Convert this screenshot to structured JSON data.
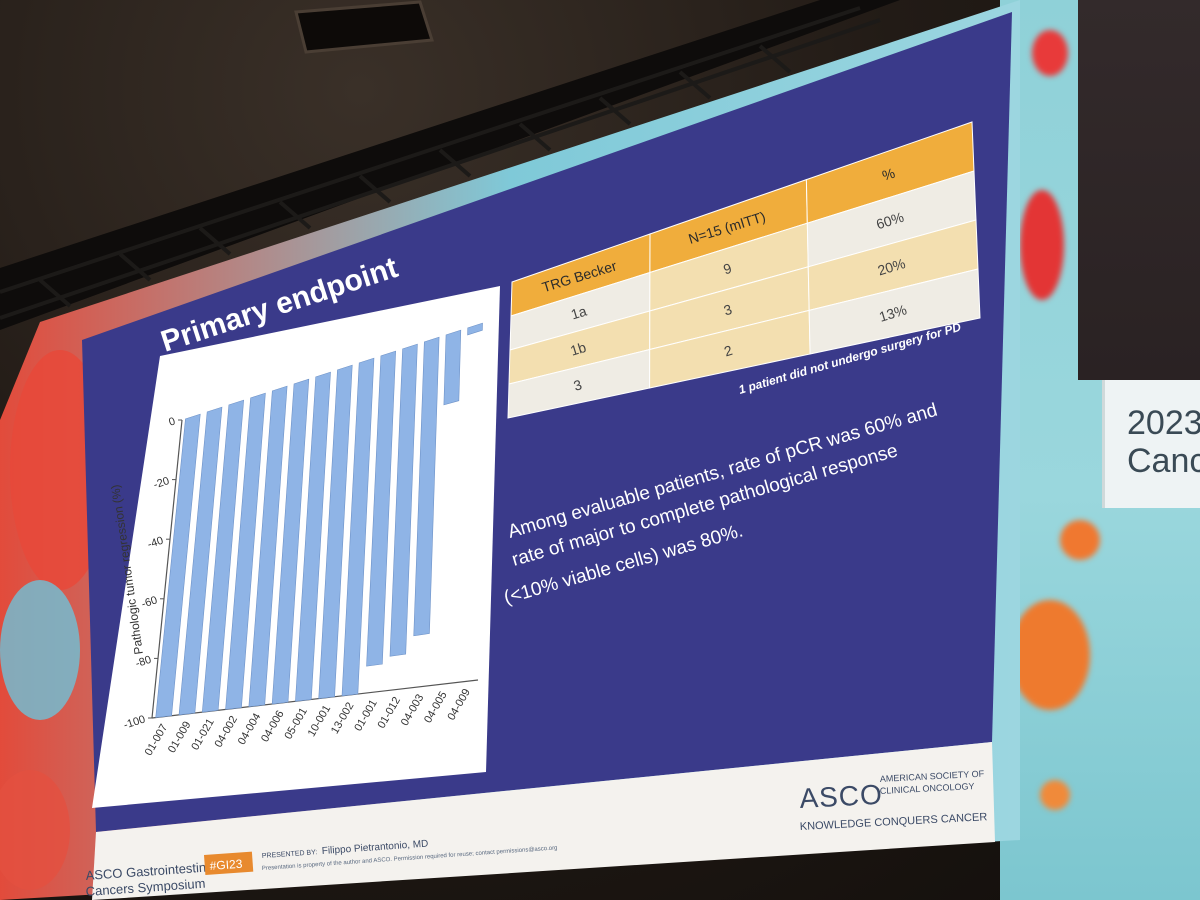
{
  "slide": {
    "title": "Primary endpoint",
    "chart_data": {
      "type": "bar",
      "ylabel": "Pathologic tumor regression (%)",
      "ylim": [
        -100,
        0
      ],
      "yticks": [
        "0",
        "-20",
        "-40",
        "-60",
        "-80",
        "-100"
      ],
      "categories": [
        "01-007",
        "01-009",
        "01-021",
        "04-002",
        "04-004",
        "04-006",
        "05-001",
        "10-001",
        "13-002",
        "01-001",
        "01-012",
        "04-003",
        "04-005",
        "04-009"
      ],
      "values": [
        -100,
        -100,
        -100,
        -100,
        -100,
        -100,
        -100,
        -100,
        -100,
        -92,
        -90,
        -85,
        -20,
        -2
      ],
      "bar_color": "#8fb4e6"
    },
    "table": {
      "headers": [
        "TRG Becker",
        "N=15 (mITT)",
        "%"
      ],
      "rows": [
        [
          "1a",
          "9",
          "60%"
        ],
        [
          "1b",
          "3",
          "20%"
        ],
        [
          "3",
          "2",
          "13%"
        ]
      ],
      "footnote": "1 patient did not undergo surgery for PD"
    },
    "summary_lines": [
      "Among evaluable patients, rate of pCR was 60% and",
      "rate of major to complete pathological response",
      "(<10% viable cells) was 80%."
    ],
    "asco_logo": {
      "wordmark": "ASCO",
      "society_line1": "AMERICAN SOCIETY OF",
      "society_line2": "CLINICAL ONCOLOGY",
      "tagline": "KNOWLEDGE CONQUERS CANCER"
    },
    "footer": {
      "symposium_line1": "ASCO Gastrointestinal",
      "symposium_line2": "Cancers Symposium",
      "hashtag": "#GI23",
      "presented_by_label": "PRESENTED BY:",
      "presenter": "Filippo Pietrantonio, MD",
      "disclaimer": "Presentation is property of the author and ASCO. Permission required for reuse; contact permissions@asco.org"
    },
    "colors": {
      "slide_bg": "#3a3a8a",
      "table_header": "#f0ad3c",
      "table_row_alt": "#f3dfb0",
      "table_row": "#efece4",
      "chart_panel": "#ffffff"
    }
  },
  "side_screen": {
    "year": "2023",
    "word": "Cance"
  }
}
